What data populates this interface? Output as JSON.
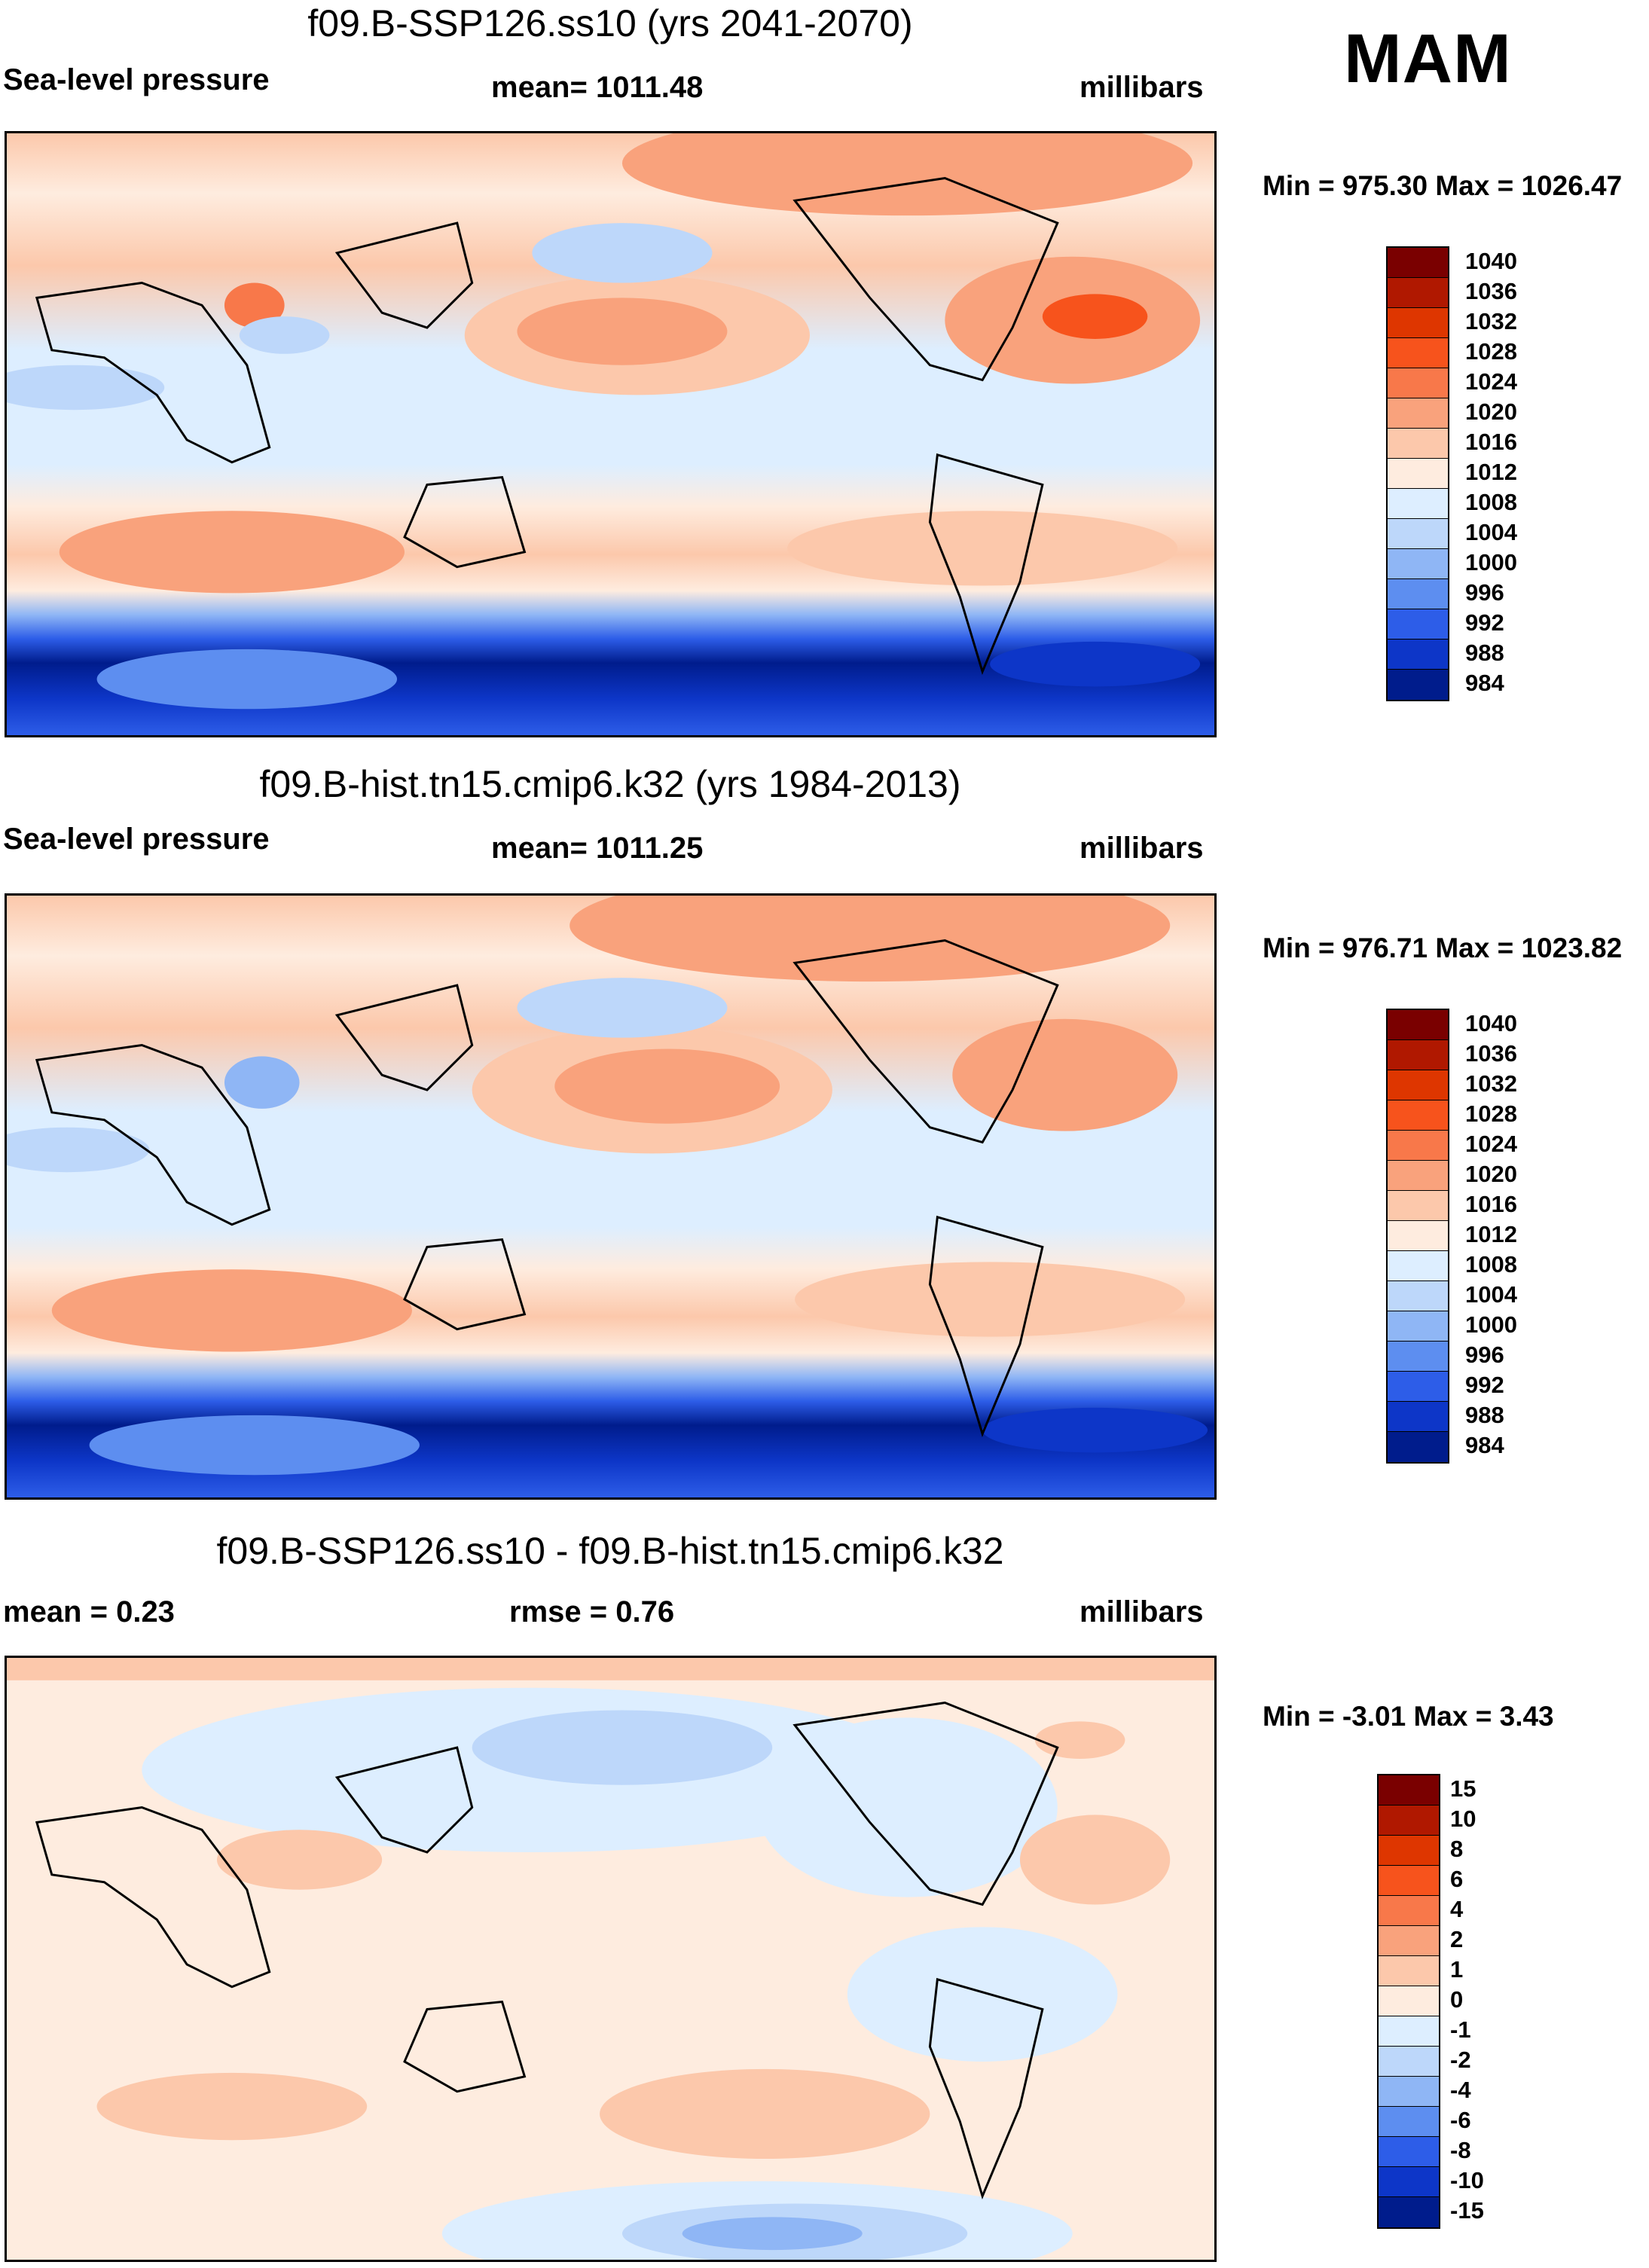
{
  "season": "MAM",
  "panels": [
    {
      "title": "f09.B-SSP126.ss10 (yrs 2041-2070)",
      "left_label": "Sea-level pressure",
      "center_label": "mean= 1011.48",
      "right_label": "millibars",
      "minmax": "Min = 975.30 Max = 1026.47"
    },
    {
      "title": "f09.B-hist.tn15.cmip6.k32 (yrs 1984-2013)",
      "left_label": "Sea-level pressure",
      "center_label": "mean= 1011.25",
      "right_label": "millibars",
      "minmax": "Min = 976.71 Max = 1023.82"
    },
    {
      "title": "f09.B-SSP126.ss10 - f09.B-hist.tn15.cmip6.k32",
      "left_label": "mean =   0.23",
      "center_label": "rmse =   0.76",
      "right_label": "millibars",
      "minmax": "Min =  -3.01 Max =   3.43"
    }
  ],
  "colorbars": {
    "pressure": {
      "labels": [
        "1040",
        "1036",
        "1032",
        "1028",
        "1024",
        "1020",
        "1016",
        "1012",
        "1008",
        "1004",
        "1000",
        "996",
        "992",
        "988",
        "984"
      ],
      "colors": [
        "#7a0000",
        "#b01800",
        "#de3600",
        "#f7531c",
        "#f8784a",
        "#f9a27c",
        "#fcc8ab",
        "#feecdf",
        "#ddeeff",
        "#bdd7fa",
        "#8fb6f5",
        "#5d8ef0",
        "#2d5de8",
        "#0d36c8",
        "#001c8c"
      ]
    },
    "difference": {
      "labels": [
        "15",
        "10",
        "8",
        "6",
        "4",
        "2",
        "1",
        "0",
        "-1",
        "-2",
        "-4",
        "-6",
        "-8",
        "-10",
        "-15"
      ],
      "colors": [
        "#7a0000",
        "#b01800",
        "#de3600",
        "#f7531c",
        "#f8784a",
        "#f9a27c",
        "#fcc8ab",
        "#feecdf",
        "#ddeeff",
        "#bdd7fa",
        "#8fb6f5",
        "#5d8ef0",
        "#2d5de8",
        "#0d36c8",
        "#001c8c"
      ]
    }
  }
}
